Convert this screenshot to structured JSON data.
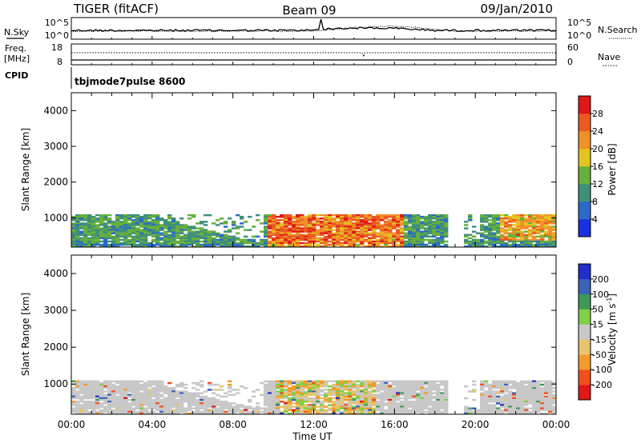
{
  "header": {
    "title_left": "TIGER (fitACF)",
    "title_center": "Beam 09",
    "title_right": "09/Jan/2010"
  },
  "noise_panel": {
    "left_label": "N.Sky",
    "left_ticks": [
      "10^5",
      "10^0"
    ],
    "right_ticks": [
      "10^5",
      "10^0"
    ],
    "right_label": "N.Search"
  },
  "freq_panel": {
    "left_label_1": "Freq.",
    "left_label_2": "[MHz]",
    "left_ticks": [
      "18",
      "8"
    ],
    "right_ticks": [
      "60",
      "0"
    ],
    "right_label": "Nave"
  },
  "cpid_panel": {
    "label": "CPID",
    "mode_text": "tbjmode7pulse 8600"
  },
  "x_axis": {
    "label": "Time UT",
    "ticks": [
      "00:00",
      "04:00",
      "08:00",
      "12:00",
      "16:00",
      "20:00",
      "00:00"
    ]
  },
  "colorbars": {
    "power": {
      "label": "Power [dB]",
      "ticks": [
        "28",
        "24",
        "20",
        "16",
        "12",
        "8",
        "4"
      ]
    },
    "velocity": {
      "label_main": "Velocity [m s",
      "label_sup": "-1",
      "label_end": "]",
      "ticks": [
        "200",
        "100",
        "50",
        "15",
        "-15",
        "-50",
        "-100",
        "-200"
      ]
    }
  },
  "chart_data": [
    {
      "type": "heatmap",
      "name": "power",
      "ylabel": "Slant Range [km]",
      "xlabel": "Time UT",
      "ylim": [
        180,
        4500
      ],
      "yticks": [
        1000,
        2000,
        3000,
        4000
      ],
      "xlim_hours": [
        0,
        24
      ],
      "data_range_km": [
        180,
        1100
      ],
      "color_scale": {
        "levels": [
          0,
          4,
          8,
          12,
          16,
          20,
          24,
          28,
          32
        ],
        "colors": [
          "#1830e0",
          "#2d6ac8",
          "#3f8f7a",
          "#66b03c",
          "#e2c41e",
          "#f0902a",
          "#ea5a20",
          "#e01818"
        ]
      }
    },
    {
      "type": "heatmap",
      "name": "velocity",
      "ylabel": "Slant Range [km]",
      "xlabel": "Time UT",
      "ylim": [
        180,
        4500
      ],
      "yticks": [
        1000,
        2000,
        3000,
        4000
      ],
      "xlim_hours": [
        0,
        24
      ],
      "data_range_km": [
        180,
        1100
      ],
      "color_scale": {
        "levels": [
          -300,
          -200,
          -100,
          -50,
          -15,
          15,
          50,
          100,
          200,
          300
        ],
        "colors": [
          "#e01818",
          "#f0501c",
          "#f29a2a",
          "#e6c46c",
          "#c8c8c8",
          "#7fcf48",
          "#3f9a5a",
          "#3b62b8",
          "#2030c8"
        ]
      }
    }
  ]
}
